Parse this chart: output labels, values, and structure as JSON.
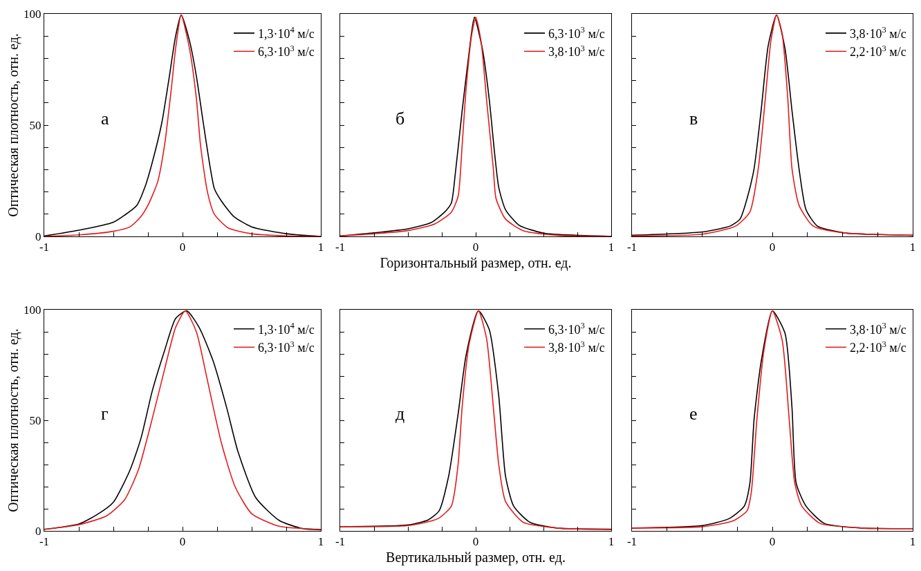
{
  "chart_data": [
    {
      "type": "line",
      "ylabel": "Оптическая плотность, отн. ед.",
      "annotations": [
        "а"
      ],
      "legend": "top right",
      "xlim": [
        -1,
        1
      ],
      "ylim": [
        0,
        100
      ],
      "xticks": [
        -1,
        {
          "value": -0.75,
          "label": null
        },
        {
          "value": -0.5,
          "label": null
        },
        {
          "value": -0.25,
          "label": null
        },
        0,
        {
          "value": 0.25,
          "label": null
        },
        {
          "value": 0.5,
          "label": null
        },
        {
          "value": 0.75,
          "label": null
        },
        1
      ],
      "yticks": [
        0,
        {
          "value": 10,
          "label": null
        },
        {
          "value": 20,
          "label": null
        },
        {
          "value": 30,
          "label": null
        },
        {
          "value": 40,
          "label": null
        },
        50,
        {
          "value": 60,
          "label": null
        },
        {
          "value": 70,
          "label": null
        },
        {
          "value": 80,
          "label": null
        },
        {
          "value": 90,
          "label": null
        },
        100
      ],
      "series": [
        {
          "name": "1,3·10$^{4}$ м/с",
          "color": "#000000",
          "x": [
            -1,
            -0.75,
            -0.5,
            -0.42,
            -0.33,
            -0.27,
            -0.22,
            -0.15,
            -0.1,
            -0.05,
            -0.01,
            0.05,
            0.1,
            0.15,
            0.2,
            0.23,
            0.28,
            0.37,
            0.5,
            0.75,
            1
          ],
          "values": [
            0.2,
            2.8,
            6.4,
            9.5,
            14,
            22.5,
            33,
            51,
            70,
            90,
            99.5,
            88,
            72,
            51,
            31,
            21.5,
            16,
            9,
            4.3,
            1.2,
            0
          ]
        },
        {
          "name": "6,3·10$^{3}$ м/с",
          "color": "#e41a1c",
          "x": [
            -1,
            -0.75,
            -0.5,
            -0.38,
            -0.3,
            -0.25,
            -0.18,
            -0.13,
            -0.08,
            -0.05,
            -0.01,
            0.05,
            0.1,
            0.13,
            0.18,
            0.23,
            0.33,
            0.5,
            0.75,
            1
          ],
          "values": [
            0,
            0.7,
            2.3,
            4.3,
            9,
            14,
            24.5,
            41,
            67,
            84.5,
            99.5,
            84.5,
            62,
            41,
            20,
            10,
            3.8,
            1.2,
            0.2,
            0
          ]
        }
      ]
    },
    {
      "type": "line",
      "xlabel": "Горизонтальный размер, отн. ед.",
      "annotations": [
        "б"
      ],
      "legend": "top right",
      "tick_labels": "x",
      "xlim": [
        -1,
        1
      ],
      "ylim": [
        0,
        100
      ],
      "xticks": [
        -1,
        {
          "value": -0.75,
          "label": null
        },
        {
          "value": -0.5,
          "label": null
        },
        {
          "value": -0.25,
          "label": null
        },
        0,
        {
          "value": 0.25,
          "label": null
        },
        {
          "value": 0.5,
          "label": null
        },
        {
          "value": 0.75,
          "label": null
        },
        1
      ],
      "yticks": [
        {
          "value": 0,
          "label": null
        },
        {
          "value": 10,
          "label": null
        },
        {
          "value": 20,
          "label": null
        },
        {
          "value": 30,
          "label": null
        },
        {
          "value": 40,
          "label": null
        },
        {
          "value": 50,
          "label": null
        },
        {
          "value": 60,
          "label": null
        },
        {
          "value": 70,
          "label": null
        },
        {
          "value": 80,
          "label": null
        },
        {
          "value": 90,
          "label": null
        },
        {
          "value": 100,
          "label": null
        }
      ],
      "series": [
        {
          "name": "6,3·10$^{3}$ м/с",
          "color": "#000000",
          "x": [
            -1,
            -0.75,
            -0.5,
            -0.33,
            -0.23,
            -0.18,
            -0.15,
            -0.1,
            -0.05,
            -0.01,
            0.05,
            0.1,
            0.14,
            0.17,
            0.22,
            0.32,
            0.5,
            0.75,
            1
          ],
          "values": [
            0.2,
            1.6,
            3.4,
            6.2,
            10.9,
            15,
            28.5,
            56.5,
            82,
            98.5,
            84,
            61.5,
            37,
            22,
            12,
            5,
            1.5,
            0.5,
            0
          ]
        },
        {
          "name": "3,8·10$^{3}$ м/с",
          "color": "#e41a1c",
          "x": [
            -1,
            -0.75,
            -0.5,
            -0.3,
            -0.18,
            -0.13,
            -0.1,
            -0.07,
            -0.03,
            0,
            0.04,
            0.08,
            0.13,
            0.15,
            0.22,
            0.35,
            0.6,
            1
          ],
          "values": [
            0.2,
            1.2,
            2.6,
            5.7,
            10.9,
            18,
            41,
            67,
            90.5,
            98.5,
            87.5,
            61.5,
            30.5,
            17,
            7.8,
            2.6,
            0.5,
            0
          ]
        }
      ]
    },
    {
      "type": "line",
      "annotations": [
        "в"
      ],
      "legend": "top right",
      "tick_labels": "x",
      "xlim": [
        -1,
        1
      ],
      "ylim": [
        0,
        100
      ],
      "xticks": [
        -1,
        {
          "value": -0.75,
          "label": null
        },
        {
          "value": -0.5,
          "label": null
        },
        {
          "value": -0.25,
          "label": null
        },
        0,
        {
          "value": 0.25,
          "label": null
        },
        {
          "value": 0.5,
          "label": null
        },
        {
          "value": 0.75,
          "label": null
        },
        1
      ],
      "yticks": [
        {
          "value": 0,
          "label": null
        },
        {
          "value": 10,
          "label": null
        },
        {
          "value": 20,
          "label": null
        },
        {
          "value": 30,
          "label": null
        },
        {
          "value": 40,
          "label": null
        },
        {
          "value": 50,
          "label": null
        },
        {
          "value": 60,
          "label": null
        },
        {
          "value": 70,
          "label": null
        },
        {
          "value": 80,
          "label": null
        },
        {
          "value": 90,
          "label": null
        },
        {
          "value": 100,
          "label": null
        }
      ],
      "series": [
        {
          "name": "3,8·10$^{3}$ м/с",
          "color": "#000000",
          "x": [
            -1,
            -0.5,
            -0.3,
            -0.23,
            -0.18,
            -0.13,
            -0.08,
            -0.03,
            0.03,
            0.09,
            0.14,
            0.19,
            0.24,
            0.32,
            0.51,
            0.84,
            1
          ],
          "values": [
            0.5,
            2,
            4.7,
            7.8,
            17,
            30.5,
            56.5,
            85.5,
            99.5,
            84.5,
            56.5,
            30.5,
            12,
            4.7,
            1.6,
            0.7,
            0.5
          ]
        },
        {
          "name": "2,2·10$^{3}$ м/с",
          "color": "#e41a1c",
          "x": [
            -1,
            -0.5,
            -0.26,
            -0.16,
            -0.1,
            -0.05,
            -0.01,
            0.03,
            0.07,
            0.11,
            0.14,
            0.19,
            0.29,
            0.51,
            1
          ],
          "values": [
            0.2,
            1,
            4.7,
            11,
            30.5,
            62,
            88,
            99.5,
            91,
            62,
            30.5,
            14,
            4.7,
            1.6,
            0.5
          ]
        }
      ]
    },
    {
      "type": "line",
      "ylabel": "Оптическая плотность, отн. ед.",
      "annotations": [
        "г"
      ],
      "legend": "top right",
      "xlim": [
        -1,
        1
      ],
      "ylim": [
        0,
        100
      ],
      "xticks": [
        -1,
        {
          "value": -0.75,
          "label": null
        },
        {
          "value": -0.5,
          "label": null
        },
        {
          "value": -0.25,
          "label": null
        },
        0,
        {
          "value": 0.25,
          "label": null
        },
        {
          "value": 0.5,
          "label": null
        },
        {
          "value": 0.75,
          "label": null
        },
        1
      ],
      "yticks": [
        0,
        {
          "value": 10,
          "label": null
        },
        {
          "value": 20,
          "label": null
        },
        {
          "value": 30,
          "label": null
        },
        {
          "value": 40,
          "label": null
        },
        50,
        {
          "value": 60,
          "label": null
        },
        {
          "value": 70,
          "label": null
        },
        {
          "value": 80,
          "label": null
        },
        {
          "value": 90,
          "label": null
        },
        100
      ],
      "series": [
        {
          "name": "1,3·10$^{4}$ м/с",
          "color": "#000000",
          "x": [
            -1,
            -0.75,
            -0.62,
            -0.5,
            -0.38,
            -0.3,
            -0.22,
            -0.13,
            -0.05,
            0.03,
            0.12,
            0.22,
            0.32,
            0.4,
            0.53,
            0.7,
            0.87,
            1
          ],
          "values": [
            0.7,
            3.1,
            7.3,
            13,
            27.5,
            42,
            63,
            81.5,
            96,
            99.5,
            92,
            77,
            55.5,
            36,
            15,
            4.7,
            1,
            0.5
          ]
        },
        {
          "name": "6,3·10$^{3}$ м/с",
          "color": "#e41a1c",
          "x": [
            -1,
            -0.75,
            -0.55,
            -0.42,
            -0.32,
            -0.22,
            -0.13,
            -0.05,
            0.02,
            0.1,
            0.18,
            0.28,
            0.38,
            0.5,
            0.7,
            1
          ],
          "values": [
            0.7,
            2.8,
            6.8,
            14,
            27.5,
            50.5,
            73,
            92,
            99.5,
            90,
            68,
            40,
            20,
            7.8,
            2.1,
            0.7
          ]
        }
      ]
    },
    {
      "type": "line",
      "xlabel": "Вертикальный размер, отн. ед.",
      "annotations": [
        "д"
      ],
      "legend": "top right",
      "tick_labels": "x",
      "xlim": [
        -1,
        1
      ],
      "ylim": [
        0,
        100
      ],
      "xticks": [
        -1,
        {
          "value": -0.75,
          "label": null
        },
        {
          "value": -0.5,
          "label": null
        },
        {
          "value": -0.25,
          "label": null
        },
        0,
        {
          "value": 0.25,
          "label": null
        },
        {
          "value": 0.5,
          "label": null
        },
        {
          "value": 0.75,
          "label": null
        },
        1
      ],
      "yticks": [
        {
          "value": 0,
          "label": null
        },
        {
          "value": 10,
          "label": null
        },
        {
          "value": 20,
          "label": null
        },
        {
          "value": 30,
          "label": null
        },
        {
          "value": 40,
          "label": null
        },
        {
          "value": 50,
          "label": null
        },
        {
          "value": 60,
          "label": null
        },
        {
          "value": 70,
          "label": null
        },
        {
          "value": 80,
          "label": null
        },
        {
          "value": 90,
          "label": null
        },
        {
          "value": 100,
          "label": null
        }
      ],
      "series": [
        {
          "name": "6,3·10$^{3}$ м/с",
          "color": "#000000",
          "x": [
            -1,
            -0.5,
            -0.35,
            -0.27,
            -0.2,
            -0.13,
            -0.07,
            0.02,
            0.1,
            0.17,
            0.22,
            0.28,
            0.4,
            0.6,
            1
          ],
          "values": [
            1.9,
            2.7,
            5,
            9.1,
            24.7,
            52.8,
            79.8,
            99.5,
            91,
            61,
            24.7,
            11.2,
            3.9,
            1.3,
            0.8
          ]
        },
        {
          "name": "3,8·10$^{3}$ м/с",
          "color": "#e41a1c",
          "x": [
            -1,
            -0.5,
            -0.28,
            -0.18,
            -0.13,
            -0.1,
            -0.05,
            0.02,
            0.08,
            0.13,
            0.17,
            0.22,
            0.35,
            0.6,
            1
          ],
          "values": [
            1.9,
            2.4,
            5.5,
            11.2,
            30,
            56,
            84,
            99.5,
            87,
            56,
            30,
            13.3,
            3.9,
            1.3,
            0.6
          ]
        }
      ]
    },
    {
      "type": "line",
      "annotations": [
        "е"
      ],
      "legend": "top right",
      "tick_labels": "x",
      "xlim": [
        -1,
        1
      ],
      "ylim": [
        0,
        100
      ],
      "xticks": [
        -1,
        {
          "value": -0.75,
          "label": null
        },
        {
          "value": -0.5,
          "label": null
        },
        {
          "value": -0.25,
          "label": null
        },
        0,
        {
          "value": 0.25,
          "label": null
        },
        {
          "value": 0.5,
          "label": null
        },
        {
          "value": 0.75,
          "label": null
        },
        1
      ],
      "yticks": [
        {
          "value": 0,
          "label": null
        },
        {
          "value": 10,
          "label": null
        },
        {
          "value": 20,
          "label": null
        },
        {
          "value": 30,
          "label": null
        },
        {
          "value": 40,
          "label": null
        },
        {
          "value": 50,
          "label": null
        },
        {
          "value": 60,
          "label": null
        },
        {
          "value": 70,
          "label": null
        },
        {
          "value": 80,
          "label": null
        },
        {
          "value": 90,
          "label": null
        },
        {
          "value": 100,
          "label": null
        }
      ],
      "series": [
        {
          "name": "3,8·10$^{3}$ м/с",
          "color": "#000000",
          "x": [
            -1,
            -0.5,
            -0.31,
            -0.2,
            -0.16,
            -0.13,
            -0.08,
            0,
            0.09,
            0.14,
            0.17,
            0.24,
            0.37,
            0.64,
            1
          ],
          "values": [
            1.3,
            2.4,
            5.5,
            11.2,
            21.5,
            50.5,
            76.4,
            99.5,
            89.4,
            55.7,
            21.5,
            11.2,
            3.4,
            1.3,
            1
          ]
        },
        {
          "name": "2,2·10$^{3}$ м/с",
          "color": "#e41a1c",
          "x": [
            -1,
            -0.5,
            -0.28,
            -0.18,
            -0.15,
            -0.11,
            -0.06,
            0,
            0.07,
            0.12,
            0.16,
            0.21,
            0.34,
            0.64,
            1
          ],
          "values": [
            1.3,
            1.9,
            4.5,
            9.1,
            17.4,
            50.5,
            81.6,
            99.5,
            86.3,
            50.5,
            21.5,
            11.2,
            3.4,
            1.3,
            1
          ]
        }
      ]
    }
  ]
}
